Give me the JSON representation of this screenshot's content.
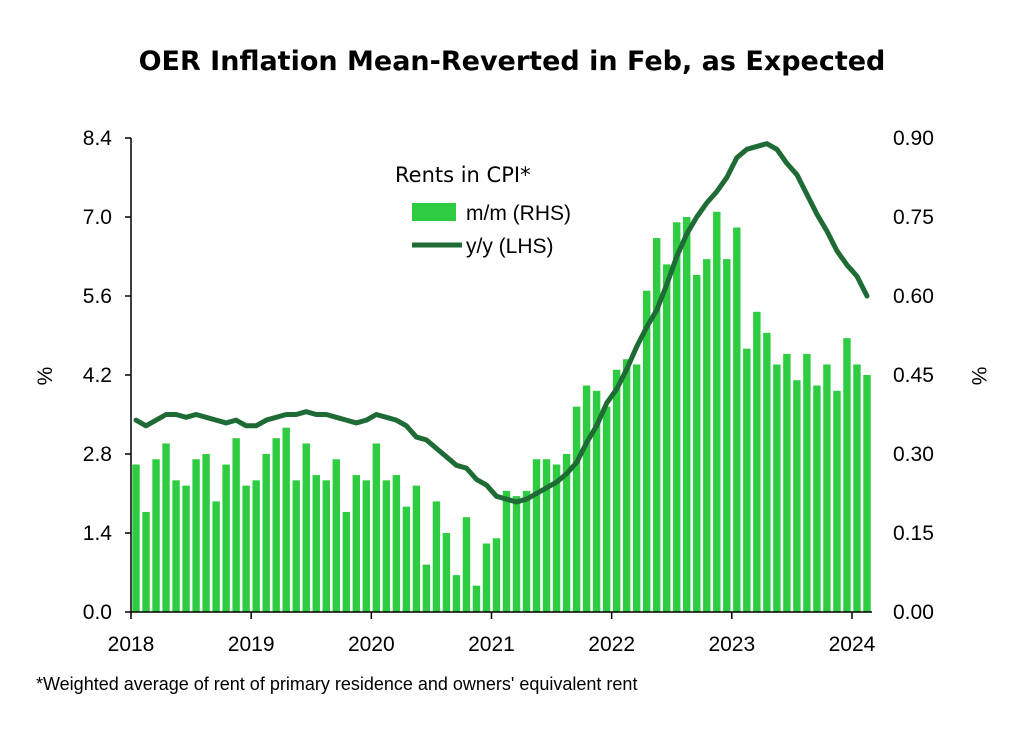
{
  "chart_data": {
    "type": "bar",
    "title": "OER Inflation Mean-Reverted in Feb, as Expected",
    "footnote": "*Weighted average of rent of primary residence and owners' equivalent rent",
    "legend": {
      "title": "Rents in CPI*",
      "placement": "top-center",
      "entries": [
        "m/m (RHS)",
        "y/y (LHS)"
      ]
    },
    "y_left": {
      "label": "%",
      "ticks": [
        "8.4",
        "7.0",
        "5.6",
        "4.2",
        "2.8",
        "1.4",
        "0.0"
      ],
      "range": [
        0,
        8.4
      ]
    },
    "y_right": {
      "label": "%",
      "ticks": [
        "0.90",
        "0.75",
        "0.60",
        "0.45",
        "0.30",
        "0.15",
        "0.00"
      ],
      "range": [
        0,
        0.9
      ]
    },
    "x": {
      "ticks": [
        "2018",
        "2019",
        "2020",
        "2021",
        "2022",
        "2023",
        "2024"
      ],
      "range": [
        "2018-01",
        "2024-02"
      ]
    },
    "grid": false,
    "colors": {
      "bars": "#2ecc40",
      "line": "#1e6b35"
    },
    "months": [
      "2018-01",
      "2018-02",
      "2018-03",
      "2018-04",
      "2018-05",
      "2018-06",
      "2018-07",
      "2018-08",
      "2018-09",
      "2018-10",
      "2018-11",
      "2018-12",
      "2019-01",
      "2019-02",
      "2019-03",
      "2019-04",
      "2019-05",
      "2019-06",
      "2019-07",
      "2019-08",
      "2019-09",
      "2019-10",
      "2019-11",
      "2019-12",
      "2020-01",
      "2020-02",
      "2020-03",
      "2020-04",
      "2020-05",
      "2020-06",
      "2020-07",
      "2020-08",
      "2020-09",
      "2020-10",
      "2020-11",
      "2020-12",
      "2021-01",
      "2021-02",
      "2021-03",
      "2021-04",
      "2021-05",
      "2021-06",
      "2021-07",
      "2021-08",
      "2021-09",
      "2021-10",
      "2021-11",
      "2021-12",
      "2022-01",
      "2022-02",
      "2022-03",
      "2022-04",
      "2022-05",
      "2022-06",
      "2022-07",
      "2022-08",
      "2022-09",
      "2022-10",
      "2022-11",
      "2022-12",
      "2023-01",
      "2023-02",
      "2023-03",
      "2023-04",
      "2023-05",
      "2023-06",
      "2023-07",
      "2023-08",
      "2023-09",
      "2023-10",
      "2023-11",
      "2023-12",
      "2024-01",
      "2024-02"
    ],
    "series": [
      {
        "name": "m/m (RHS)",
        "axis": "right",
        "kind": "bar",
        "values": [
          0.28,
          0.19,
          0.29,
          0.32,
          0.25,
          0.24,
          0.29,
          0.3,
          0.21,
          0.28,
          0.33,
          0.24,
          0.25,
          0.3,
          0.33,
          0.35,
          0.25,
          0.32,
          0.26,
          0.25,
          0.29,
          0.19,
          0.26,
          0.25,
          0.32,
          0.25,
          0.26,
          0.2,
          0.24,
          0.09,
          0.21,
          0.15,
          0.07,
          0.18,
          0.05,
          0.13,
          0.14,
          0.23,
          0.22,
          0.23,
          0.29,
          0.29,
          0.28,
          0.3,
          0.39,
          0.43,
          0.42,
          0.39,
          0.46,
          0.48,
          0.47,
          0.61,
          0.71,
          0.66,
          0.74,
          0.75,
          0.64,
          0.67,
          0.76,
          0.67,
          0.73,
          0.5,
          0.57,
          0.53,
          0.47,
          0.49,
          0.44,
          0.49,
          0.43,
          0.47,
          0.42,
          0.52,
          0.47,
          0.45
        ]
      },
      {
        "name": "y/y (LHS)",
        "axis": "left",
        "kind": "line",
        "values": [
          3.4,
          3.3,
          3.4,
          3.5,
          3.5,
          3.45,
          3.5,
          3.45,
          3.4,
          3.35,
          3.4,
          3.3,
          3.3,
          3.4,
          3.45,
          3.5,
          3.5,
          3.55,
          3.5,
          3.5,
          3.45,
          3.4,
          3.35,
          3.4,
          3.5,
          3.45,
          3.4,
          3.3,
          3.1,
          3.05,
          2.9,
          2.75,
          2.6,
          2.55,
          2.35,
          2.25,
          2.05,
          2.0,
          1.95,
          2.0,
          2.1,
          2.2,
          2.3,
          2.45,
          2.65,
          3.0,
          3.3,
          3.7,
          3.95,
          4.3,
          4.7,
          5.05,
          5.35,
          5.8,
          6.3,
          6.7,
          7.0,
          7.25,
          7.45,
          7.7,
          8.05,
          8.2,
          8.25,
          8.3,
          8.2,
          7.95,
          7.75,
          7.4,
          7.05,
          6.75,
          6.4,
          6.15,
          5.95,
          5.6
        ]
      }
    ]
  }
}
